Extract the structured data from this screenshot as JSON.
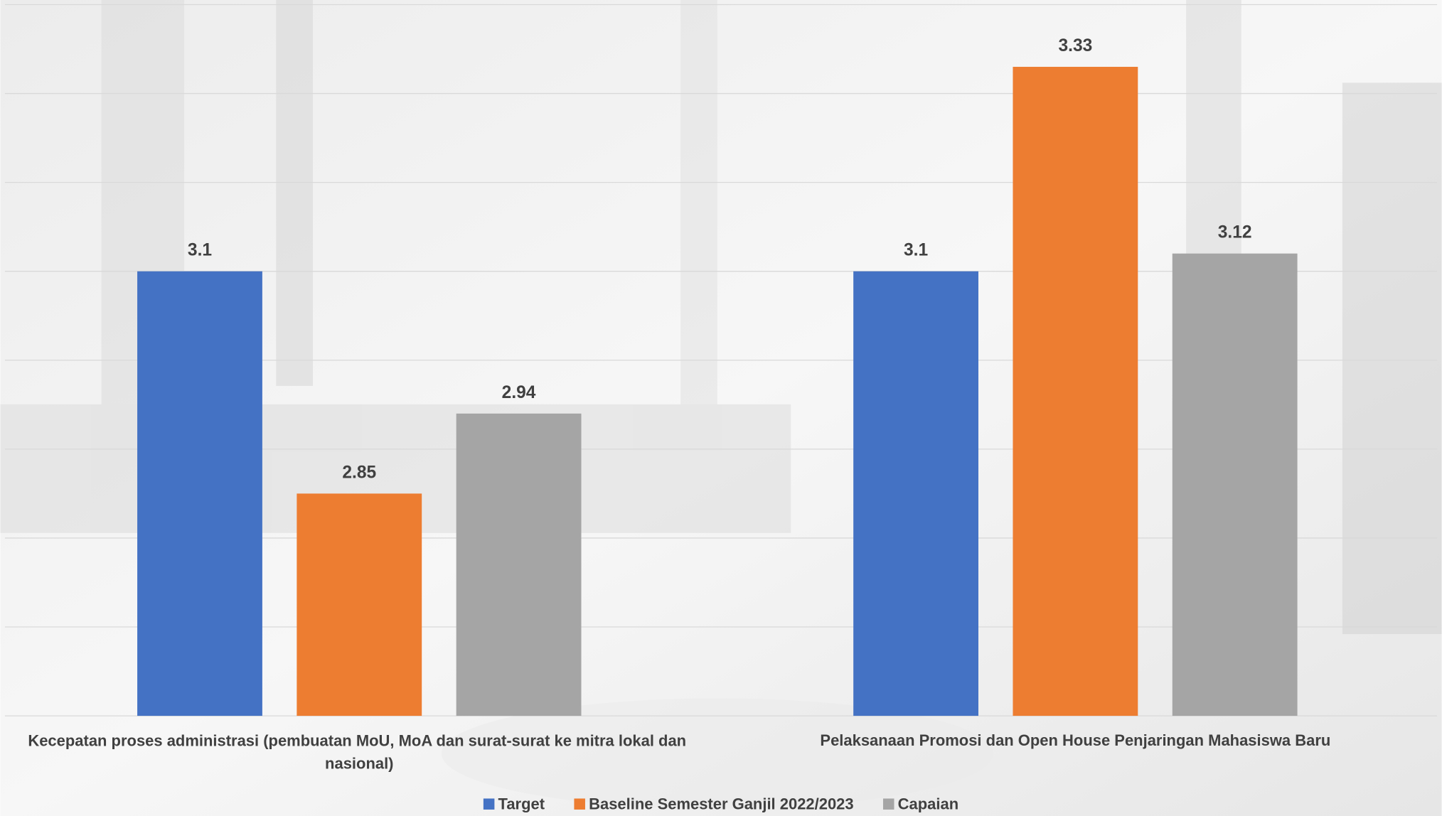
{
  "chart_data": {
    "type": "bar",
    "categories": [
      "Kecepatan proses administrasi (pembuatan MoU, MoA dan surat-surat ke mitra lokal dan nasional)",
      "Pelaksanaan Promosi dan Open House Penjaringan Mahasiswa Baru"
    ],
    "series": [
      {
        "name": "Target",
        "color": "#4472c4",
        "values": [
          3.1,
          3.1
        ]
      },
      {
        "name": "Baseline Semester Ganjil 2022/2023",
        "color": "#ed7d31",
        "values": [
          2.85,
          3.33
        ]
      },
      {
        "name": "Capaian",
        "color": "#a5a5a5",
        "values": [
          2.94,
          3.12
        ]
      }
    ],
    "ylim": [
      2.6,
      3.4
    ],
    "yticks": [
      2.6,
      2.7,
      2.8,
      2.9,
      3.0,
      3.1,
      3.2,
      3.3,
      3.4
    ],
    "grid": true,
    "legend": "bottom"
  }
}
